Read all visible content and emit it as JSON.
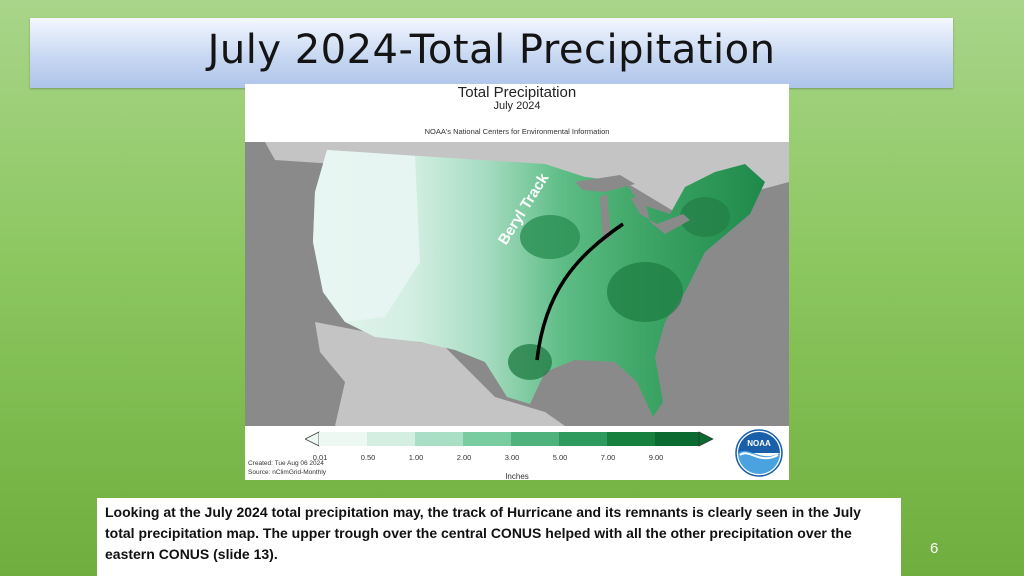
{
  "slide": {
    "title": "July 2024-Total Precipitation",
    "number": "6"
  },
  "map": {
    "title": "Total Precipitation",
    "subtitle": "July 2024",
    "source_line": "NOAA's National Centers for Environmental Information",
    "track_label": "Beryl Track",
    "legend": {
      "ticks": [
        "0.01",
        "0.50",
        "1.00",
        "2.00",
        "3.00",
        "5.00",
        "7.00",
        "9.00"
      ],
      "units": "Inches",
      "colors": [
        "#eef8f2",
        "#d4efe1",
        "#a9dfc4",
        "#79cba0",
        "#4fb27d",
        "#2f9a5e",
        "#16803f",
        "#0a6a2f"
      ]
    },
    "created": "Created: Tue Aug 06 2024",
    "data_source": "Source: nClimGrid-Monthly",
    "logo_text": "NOAA"
  },
  "caption": {
    "text": "Looking at the July 2024 total precipitation may, the track of Hurricane and its remnants is clearly seen in the July total precipitation map. The upper trough over the central CONUS helped with all the other precipitation over the eastern CONUS (slide 13)."
  },
  "colors": {
    "background_green": "#8cc760",
    "title_bar_blue": "#c8d8f2",
    "ocean_gray": "#8a8a8a",
    "land_outside_gray": "#c4c4c4"
  }
}
